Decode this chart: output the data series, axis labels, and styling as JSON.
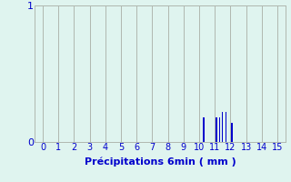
{
  "xlabel": "Précipitations 6min ( mm )",
  "xlim": [
    -0.5,
    15.5
  ],
  "ylim": [
    0,
    1
  ],
  "xticks": [
    0,
    1,
    2,
    3,
    4,
    5,
    6,
    7,
    8,
    9,
    10,
    11,
    12,
    13,
    14,
    15
  ],
  "yticks": [
    0,
    1
  ],
  "background_color": "#dff4ef",
  "bar_color": "#0000cc",
  "grid_color": "#b0b8b0",
  "text_color": "#0000cc",
  "bar_data": [
    {
      "x": 10.3,
      "height": 0.18
    },
    {
      "x": 11.1,
      "height": 0.18
    },
    {
      "x": 11.3,
      "height": 0.18
    },
    {
      "x": 11.5,
      "height": 0.22
    },
    {
      "x": 11.7,
      "height": 0.22
    },
    {
      "x": 12.1,
      "height": 0.14
    }
  ],
  "bar_width": 0.08,
  "xlabel_fontsize": 8,
  "tick_fontsize": 7,
  "ytick_fontsize": 8
}
